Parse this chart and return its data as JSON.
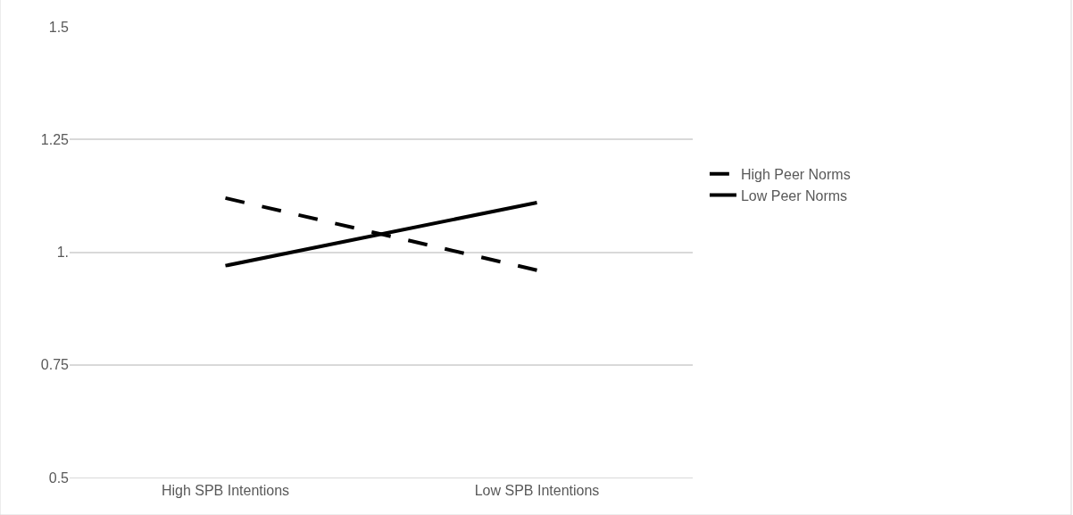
{
  "chart_data": {
    "type": "line",
    "categories": [
      "High SPB Intentions",
      "Low SPB Intentions"
    ],
    "series": [
      {
        "name": "High Peer Norms",
        "color": "#000000",
        "values": [
          1.12,
          0.96
        ],
        "line_style": "dashed"
      },
      {
        "name": "Low Peer Norms",
        "color": "#000000",
        "values": [
          0.97,
          1.11
        ],
        "line_style": "solid"
      }
    ],
    "ylim": [
      0.5,
      1.5
    ],
    "yticks": [
      0.5,
      0.75,
      {
        "value": 1,
        "label": "1."
      },
      1.25,
      1.5
    ],
    "grid": "y",
    "legend": "right",
    "marker": "none"
  }
}
